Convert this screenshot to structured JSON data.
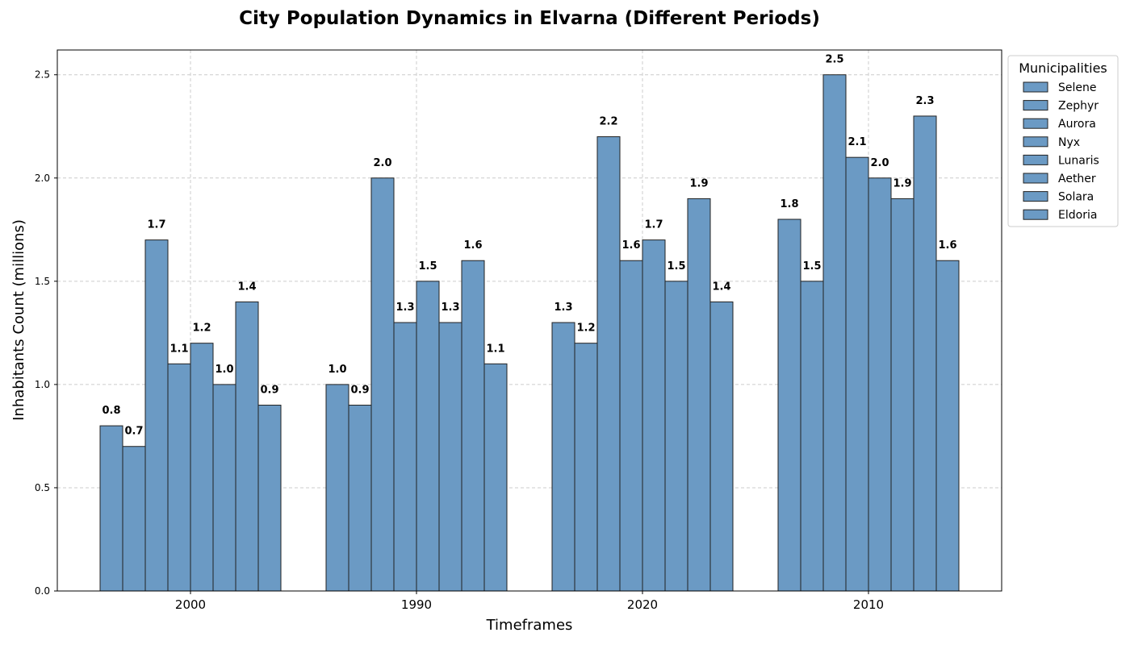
{
  "chart_data": {
    "type": "bar",
    "title": "City Population Dynamics in Elvarna (Different Periods)",
    "xlabel": "Timeframes",
    "ylabel": "Inhabitants Count (millions)",
    "categories": [
      "2000",
      "1990",
      "2020",
      "2010"
    ],
    "ylim": [
      0,
      2.62
    ],
    "yticks": [
      "0.0",
      "0.5",
      "1.0",
      "1.5",
      "2.0",
      "2.5"
    ],
    "grid": true,
    "legend_title": "Municipalities",
    "legend_position": "outside-right-top",
    "bar_color": "#6b9ac4",
    "bar_edge_color": "#222222",
    "series": [
      {
        "name": "Selene",
        "values": [
          0.8,
          1.0,
          1.3,
          1.8
        ]
      },
      {
        "name": "Zephyr",
        "values": [
          0.7,
          0.9,
          1.2,
          1.5
        ]
      },
      {
        "name": "Aurora",
        "values": [
          1.7,
          2.0,
          2.2,
          2.5
        ]
      },
      {
        "name": "Nyx",
        "values": [
          1.1,
          1.3,
          1.6,
          2.1
        ]
      },
      {
        "name": "Lunaris",
        "values": [
          1.2,
          1.5,
          1.7,
          2.0
        ]
      },
      {
        "name": "Aether",
        "values": [
          1.0,
          1.3,
          1.5,
          1.9
        ]
      },
      {
        "name": "Solara",
        "values": [
          1.4,
          1.6,
          1.9,
          2.3
        ]
      },
      {
        "name": "Eldoria",
        "values": [
          0.9,
          1.1,
          1.4,
          1.6
        ]
      }
    ]
  }
}
